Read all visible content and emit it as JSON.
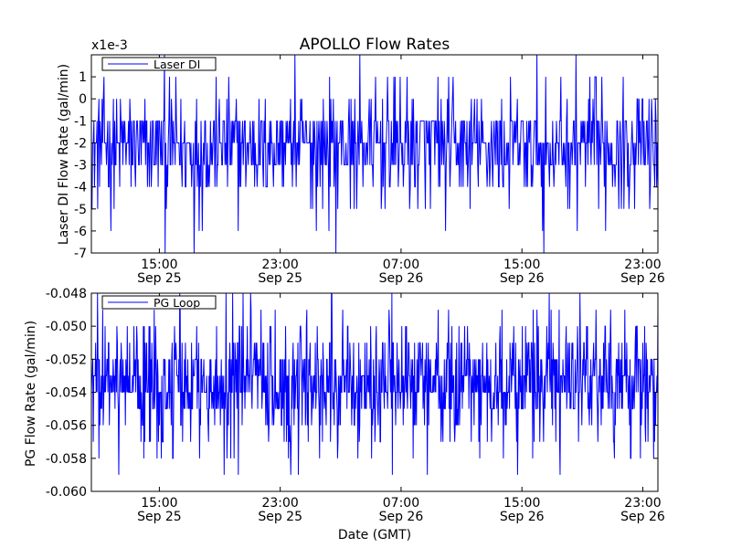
{
  "chart_data": [
    {
      "type": "line",
      "title": "APOLLO Flow Rates",
      "ylabel": "Laser DI Flow Rate (gal/min)",
      "offset_label": "x1e-3",
      "legend": {
        "label": "Laser DI",
        "placement": "top-left"
      },
      "ylim": [
        -7,
        2
      ],
      "yticks": [
        {
          "value": 1,
          "label": "1"
        },
        {
          "value": 0,
          "label": "0"
        },
        {
          "value": -1,
          "label": "-1"
        },
        {
          "value": -2,
          "label": "-2"
        },
        {
          "value": -3,
          "label": "-3"
        },
        {
          "value": -4,
          "label": "-4"
        },
        {
          "value": -5,
          "label": "-5"
        },
        {
          "value": -6,
          "label": "-6"
        },
        {
          "value": -7,
          "label": "-7"
        }
      ],
      "xlim": [
        "2024-09-25T10:30",
        "2024-09-27T00:00"
      ],
      "xticks": [
        {
          "value": "2024-09-25T15:00",
          "line1": "15:00",
          "line2": "Sep 25"
        },
        {
          "value": "2024-09-25T23:00",
          "line1": "23:00",
          "line2": "Sep 25"
        },
        {
          "value": "2024-09-26T07:00",
          "line1": "07:00",
          "line2": "Sep 26"
        },
        {
          "value": "2024-09-26T15:00",
          "line1": "15:00",
          "line2": "Sep 26"
        },
        {
          "value": "2024-09-26T23:00",
          "line1": "23:00",
          "line2": "Sep 26"
        }
      ],
      "series": [
        {
          "name": "Laser DI",
          "color": "#0000ff",
          "levels": [
            -7,
            -6,
            -5,
            -4,
            -3,
            -2,
            -1,
            0,
            1,
            2
          ],
          "weights": [
            0.004,
            0.01,
            0.03,
            0.12,
            0.24,
            0.27,
            0.24,
            0.06,
            0.02,
            0.006
          ],
          "sample_count": 900
        }
      ]
    },
    {
      "type": "line",
      "title": "",
      "xlabel": "Date (GMT)",
      "ylabel": "PG Flow Rate (gal/min)",
      "legend": {
        "label": "PG Loop",
        "placement": "top-left"
      },
      "ylim": [
        -0.06,
        -0.048
      ],
      "yticks": [
        {
          "value": -0.048,
          "label": "-0.048"
        },
        {
          "value": -0.05,
          "label": "-0.050"
        },
        {
          "value": -0.052,
          "label": "-0.052"
        },
        {
          "value": -0.054,
          "label": "-0.054"
        },
        {
          "value": -0.056,
          "label": "-0.056"
        },
        {
          "value": -0.058,
          "label": "-0.058"
        },
        {
          "value": -0.06,
          "label": "-0.060"
        }
      ],
      "xlim": [
        "2024-09-25T10:30",
        "2024-09-27T00:00"
      ],
      "xticks": [
        {
          "value": "2024-09-25T15:00",
          "line1": "15:00",
          "line2": "Sep 25"
        },
        {
          "value": "2024-09-25T23:00",
          "line1": "23:00",
          "line2": "Sep 25"
        },
        {
          "value": "2024-09-26T07:00",
          "line1": "07:00",
          "line2": "Sep 26"
        },
        {
          "value": "2024-09-26T15:00",
          "line1": "15:00",
          "line2": "Sep 26"
        },
        {
          "value": "2024-09-26T23:00",
          "line1": "23:00",
          "line2": "Sep 26"
        }
      ],
      "series": [
        {
          "name": "PG Loop",
          "color": "#0000ff",
          "levels": [
            -0.059,
            -0.058,
            -0.057,
            -0.056,
            -0.055,
            -0.054,
            -0.053,
            -0.052,
            -0.051,
            -0.05,
            -0.049,
            -0.048
          ],
          "weights": [
            0.01,
            0.02,
            0.04,
            0.07,
            0.14,
            0.22,
            0.22,
            0.14,
            0.07,
            0.04,
            0.02,
            0.01
          ],
          "sample_count": 1200
        }
      ]
    }
  ]
}
